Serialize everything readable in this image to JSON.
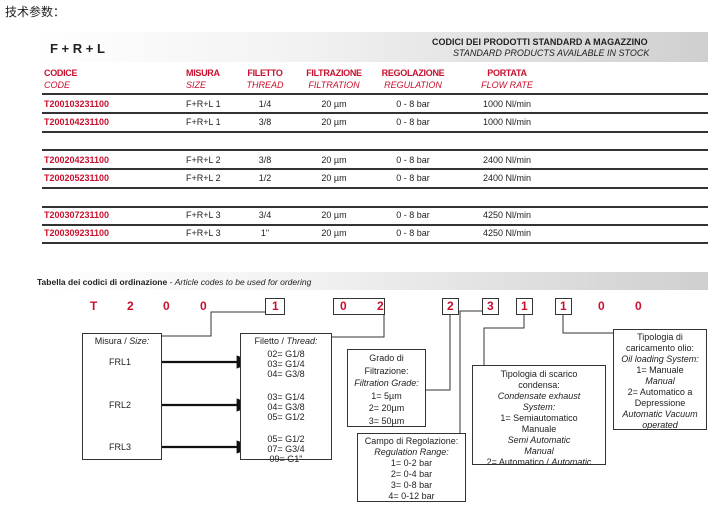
{
  "page_title": "技术参数：",
  "product_header": {
    "model": "F + R + L",
    "title": "CODICI DEI PRODOTTI STANDARD A MAGAZZINO",
    "subtitle": "STANDARD PRODUCTS AVAILABLE IN STOCK"
  },
  "table": {
    "columns": [
      {
        "it": "CODICE",
        "en": "CODE"
      },
      {
        "it": "MISURA",
        "en": "SIZE"
      },
      {
        "it": "FILETTO",
        "en": "THREAD"
      },
      {
        "it": "FILTRAZIONE",
        "en": "FILTRATION"
      },
      {
        "it": "REGOLAZIONE",
        "en": "REGULATION"
      },
      {
        "it": "PORTATA",
        "en": "FLOW RATE"
      }
    ],
    "rows": [
      [
        "T200103231100",
        "F+R+L 1",
        "1/4",
        "20 µm",
        "0 - 8 bar",
        "1000 Nl/min"
      ],
      [
        "T200104231100",
        "F+R+L 1",
        "3/8",
        "20 µm",
        "0 - 8 bar",
        "1000 Nl/min"
      ],
      [
        "T200204231100",
        "F+R+L 2",
        "3/8",
        "20 µm",
        "0 - 8 bar",
        "2400 Nl/min"
      ],
      [
        "T200205231100",
        "F+R+L 2",
        "1/2",
        "20 µm",
        "0 - 8 bar",
        "2400 Nl/min"
      ],
      [
        "T200307231100",
        "F+R+L 3",
        "3/4",
        "20 µm",
        "0 - 8 bar",
        "4250 Nl/min"
      ],
      [
        "T200309231100",
        "F+R+L 3",
        "1\"",
        "20 µm",
        "0 - 8 bar",
        "4250 Nl/min"
      ]
    ]
  },
  "ordering": {
    "title": "Tabella dei codici di ordinazione",
    "title_en": "Article codes to be used for ordering",
    "separator": " - ",
    "digits": [
      "T",
      "2",
      "0",
      "0",
      "1",
      "0",
      "2",
      "2",
      "3",
      "1",
      "1",
      "0",
      "0"
    ],
    "size_box": {
      "label": "Misura / ",
      "label_en": "Size:",
      "items": [
        "FRL1",
        "FRL2",
        "FRL3"
      ]
    },
    "thread_box": {
      "label": "Filetto / ",
      "label_en": "Thread:",
      "groups": [
        [
          "02= G1/8",
          "03= G1/4",
          "04= G3/8"
        ],
        [
          "03= G1/4",
          "04= G3/8",
          "05= G1/2"
        ],
        [
          "05= G1/2",
          "07= G3/4",
          "09= G1\""
        ]
      ]
    },
    "filtration_box": {
      "l1": "Grado di",
      "l2": "Filtrazione:",
      "en": "Filtration Grade:",
      "items": [
        "1= 5µm",
        "2= 20µm",
        "3= 50µm"
      ]
    },
    "regulation_box": {
      "l1": "Campo di Regolazione:",
      "en": "Regulation Range:",
      "items": [
        "1= 0-2 bar",
        "2= 0-4 bar",
        "3= 0-8 bar",
        "4= 0-12 bar"
      ]
    },
    "exhaust_box": {
      "l1": "Tipologia di scarico",
      "l2": "condensa:",
      "en1": "Condensate exhaust",
      "en2": "System:",
      "i1": "1= Semiautomatico",
      "i2": "Manuale",
      "i3": "Semi Automatic",
      "i4": "Manual",
      "i5a": "2= Automatico / ",
      "i5b": "Automatic"
    },
    "oil_box": {
      "l1": "Tipologia di",
      "l2": "caricamento olio:",
      "en": "Oil loading System:",
      "i1": "1= Manuale",
      "i2": "Manual",
      "i3": "2= Automatico a",
      "i4": "Depressione",
      "i5": "Automatic Vacuum",
      "i6": "operated"
    }
  }
}
